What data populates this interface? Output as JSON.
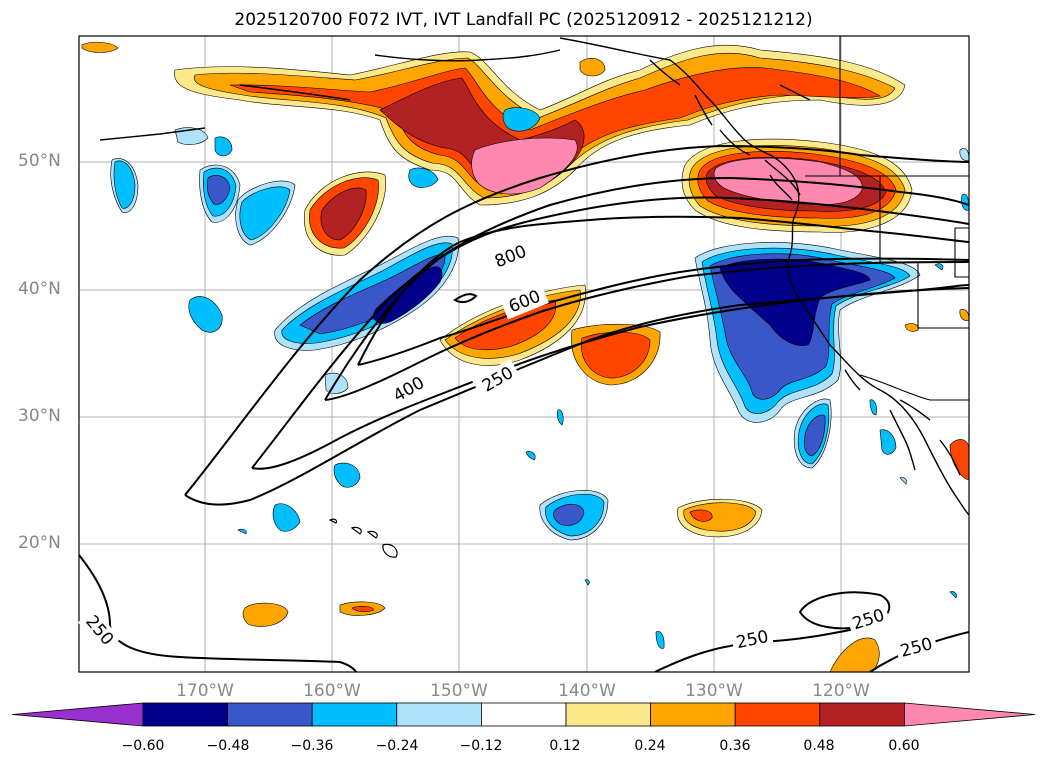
{
  "title": "2025120700 F072 IVT, IVT Landfall PC (2025120912 - 2025121212)",
  "lat_labels": [
    "50°N",
    "40°N",
    "30°N",
    "20°N"
  ],
  "lon_labels": [
    "170°W",
    "160°W",
    "150°W",
    "140°W",
    "130°W",
    "120°W"
  ],
  "contour_labels": [
    "800",
    "600",
    "400",
    "250",
    "250",
    "250",
    "250",
    "250"
  ],
  "colorbar": {
    "ticks": [
      "−0.60",
      "−0.48",
      "−0.36",
      "−0.24",
      "−0.12",
      "0.12",
      "0.24",
      "0.36",
      "0.48",
      "0.60"
    ],
    "colors": [
      "#9b30d0",
      "#00008b",
      "#3a57c9",
      "#00bfff",
      "#aee3fb",
      "#ffffff",
      "#fbe98a",
      "#ffa500",
      "#ff4500",
      "#b22222",
      "#ff88b0"
    ]
  }
}
